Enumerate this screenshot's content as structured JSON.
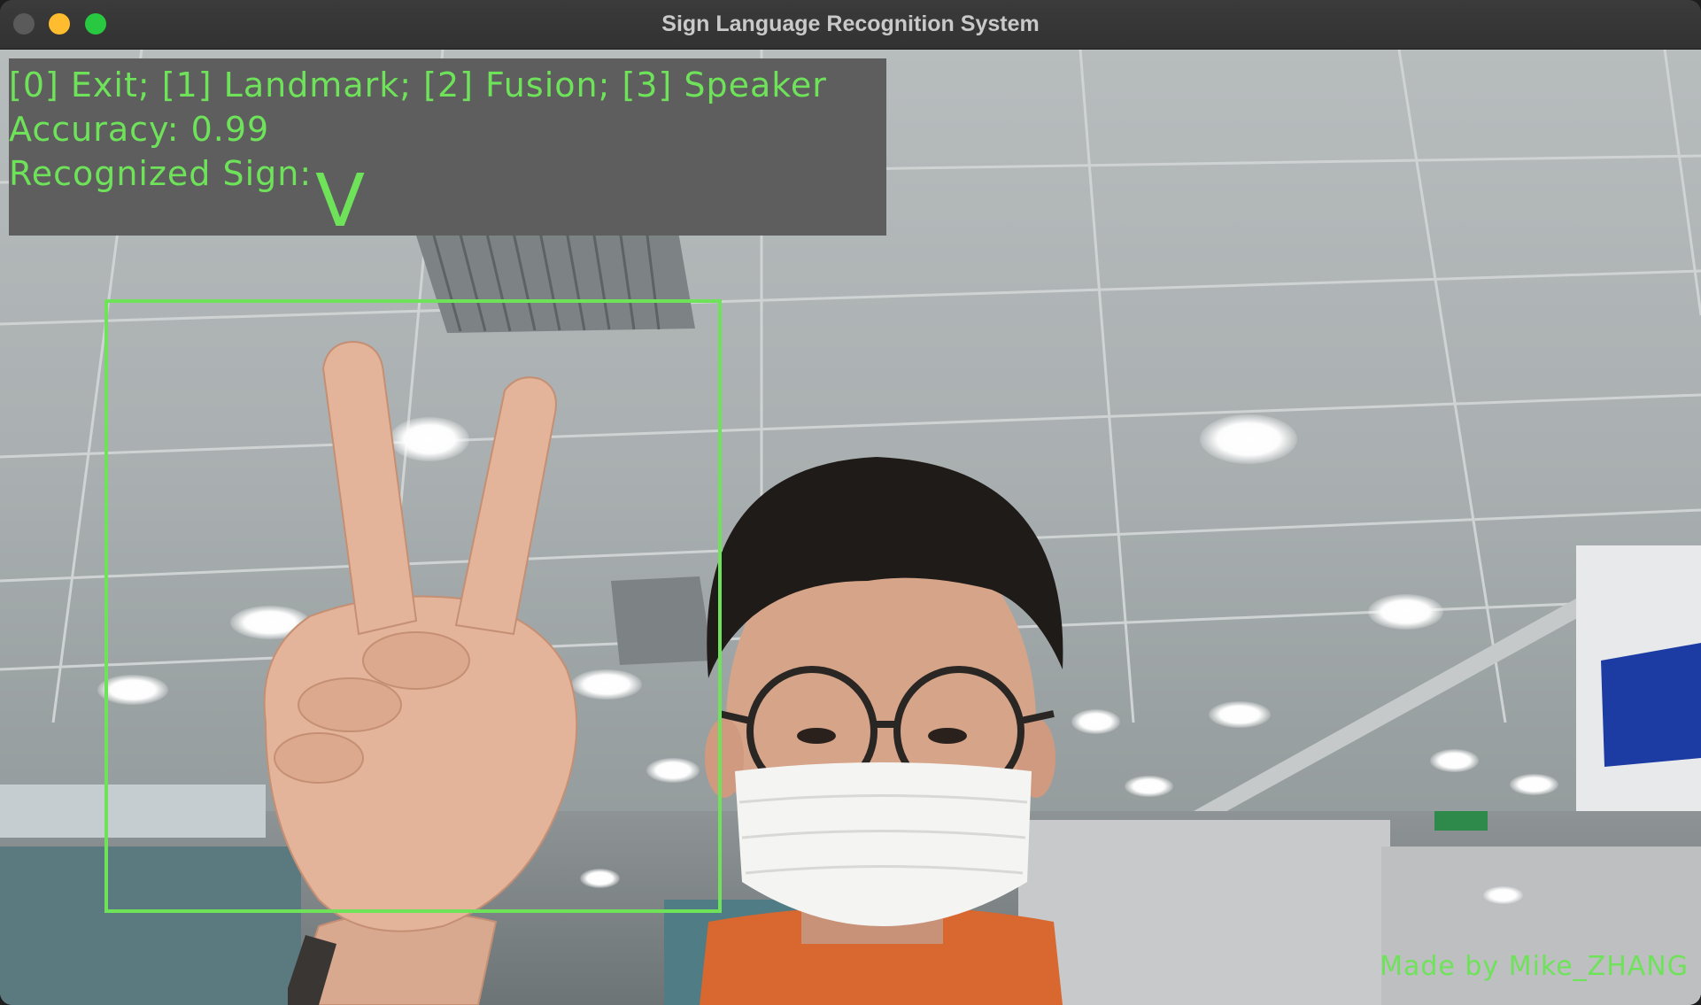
{
  "window": {
    "title": "Sign Language Recognition System",
    "controls": [
      "close",
      "minimize",
      "zoom"
    ]
  },
  "overlay": {
    "menu_line": "[0] Exit; [1] Landmark; [2] Fusion; [3] Speaker",
    "accuracy_line": "Accuracy: 0.99",
    "recognized_label": "Recognized Sign:",
    "recognized_sign": "V",
    "credit": "Made by Mike_ZHANG",
    "accent_color": "#6ee35a",
    "panel_color": "#5e5e5e"
  },
  "camera_feed": {
    "scene": "office ceiling with person wearing glasses and mask showing V sign"
  }
}
